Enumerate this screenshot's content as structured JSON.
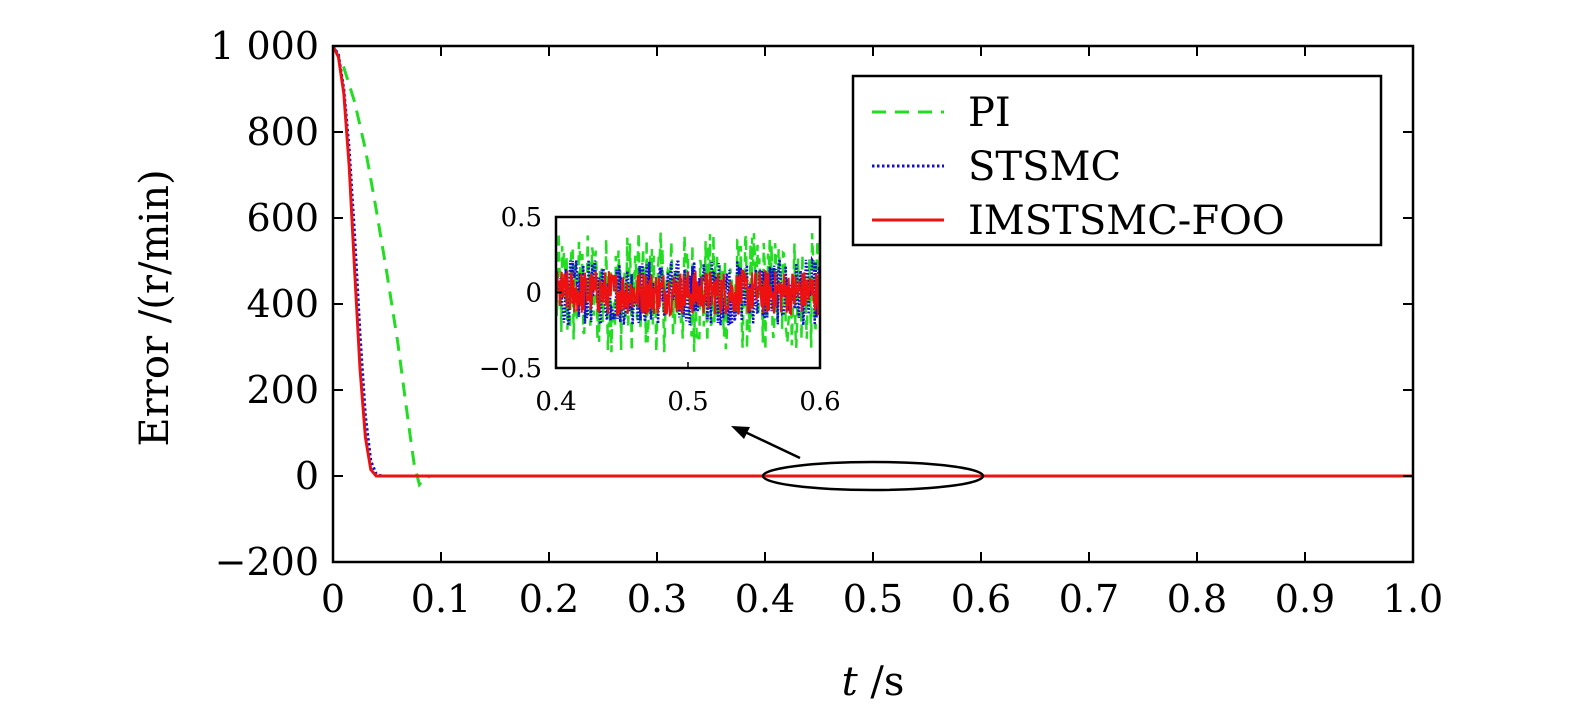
{
  "chart_data": {
    "type": "line",
    "xlabel": "t /s",
    "ylabel": "Error /(r/min)",
    "xlim": [
      0,
      1.0
    ],
    "ylim": [
      -200,
      1000
    ],
    "xticks": [
      "0",
      "0.1",
      "0.2",
      "0.3",
      "0.4",
      "0.5",
      "0.6",
      "0.7",
      "0.8",
      "0.9",
      "1.0"
    ],
    "yticks": [
      "−200",
      "0",
      "200",
      "400",
      "600",
      "800",
      "1 000"
    ],
    "legend_position": "top-right",
    "series": [
      {
        "name": "PI",
        "color": "#22dd22",
        "style": "dashed",
        "x": [
          0,
          0.01,
          0.02,
          0.03,
          0.04,
          0.05,
          0.06,
          0.07,
          0.075,
          0.08,
          0.085,
          0.09,
          0.1,
          0.2,
          0.4,
          0.6,
          0.8,
          1.0
        ],
        "y": [
          1000,
          950,
          870,
          760,
          620,
          470,
          310,
          120,
          30,
          -20,
          -5,
          0,
          0,
          0,
          0,
          0,
          0,
          0
        ]
      },
      {
        "name": "STSMC",
        "color": "#1111cc",
        "style": "dotted",
        "x": [
          0,
          0.005,
          0.01,
          0.015,
          0.02,
          0.025,
          0.03,
          0.035,
          0.04,
          0.045,
          0.05,
          0.1,
          0.2,
          0.4,
          0.6,
          0.8,
          1.0
        ],
        "y": [
          1000,
          980,
          900,
          760,
          560,
          330,
          140,
          35,
          5,
          0,
          0,
          0,
          0,
          0,
          0,
          0,
          0
        ]
      },
      {
        "name": "IMSTSMC-FOO",
        "color": "#ee1111",
        "style": "solid",
        "x": [
          0,
          0.005,
          0.01,
          0.015,
          0.02,
          0.025,
          0.03,
          0.035,
          0.04,
          0.045,
          0.05,
          0.1,
          0.2,
          0.4,
          0.6,
          0.8,
          1.0
        ],
        "y": [
          1000,
          975,
          890,
          720,
          480,
          250,
          90,
          15,
          0,
          0,
          0,
          0,
          0,
          0,
          0,
          0,
          0
        ]
      }
    ],
    "inset": {
      "xlim": [
        0.4,
        0.6
      ],
      "ylim": [
        -0.5,
        0.5
      ],
      "xticks": [
        "0.4",
        "0.5",
        "0.6"
      ],
      "yticks": [
        "−0.5",
        "0",
        "0.5"
      ],
      "amplitude": {
        "PI": 0.4,
        "STSMC": 0.22,
        "IMSTSMC-FOO": 0.15
      }
    },
    "annotation": {
      "type": "ellipse-zoom",
      "center_x": 0.5,
      "center_y": 0,
      "x_range": [
        0.4,
        0.6
      ]
    }
  }
}
